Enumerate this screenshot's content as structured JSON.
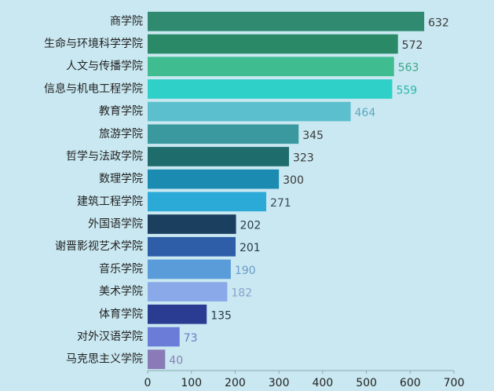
{
  "chart_data": {
    "type": "barh",
    "categories": [
      "商学院",
      "生命与环境科学学院",
      "人文与传播学院",
      "信息与机电工程学院",
      "教育学院",
      "旅游学院",
      "哲学与法政学院",
      "数理学院",
      "建筑工程学院",
      "外国语学院",
      "谢晋影视艺术学院",
      "音乐学院",
      "美术学院",
      "体育学院",
      "对外汉语学院",
      "马克思主义学院"
    ],
    "values": [
      632,
      572,
      563,
      559,
      464,
      345,
      323,
      300,
      271,
      202,
      201,
      190,
      182,
      135,
      73,
      40
    ],
    "colors": [
      "#2f8a70",
      "#2a8a68",
      "#3fbc90",
      "#2fd0c8",
      "#5bbfcd",
      "#3a999f",
      "#1e6d6c",
      "#1b8bb1",
      "#2baad8",
      "#1b3f5e",
      "#2e5ea8",
      "#5a9bd9",
      "#8aa9e8",
      "#2a3b92",
      "#6a7bd8",
      "#8a7bb8"
    ],
    "label_colors": [
      "#3a3a3a",
      "#3a3a3a",
      "#3aa888",
      "#2ab8b0",
      "#5aa8c0",
      "#3a3a3a",
      "#3a3a3a",
      "#3a3a3a",
      "#3a4a5a",
      "#2a3a4a",
      "#2a3a4a",
      "#6a9ac8",
      "#8aa0d0",
      "#2a3a4a",
      "#6a7ac8",
      "#8a80b0"
    ],
    "xlim": [
      0,
      700
    ],
    "xticks": [
      0,
      100,
      200,
      300,
      400,
      500,
      600,
      700
    ]
  }
}
